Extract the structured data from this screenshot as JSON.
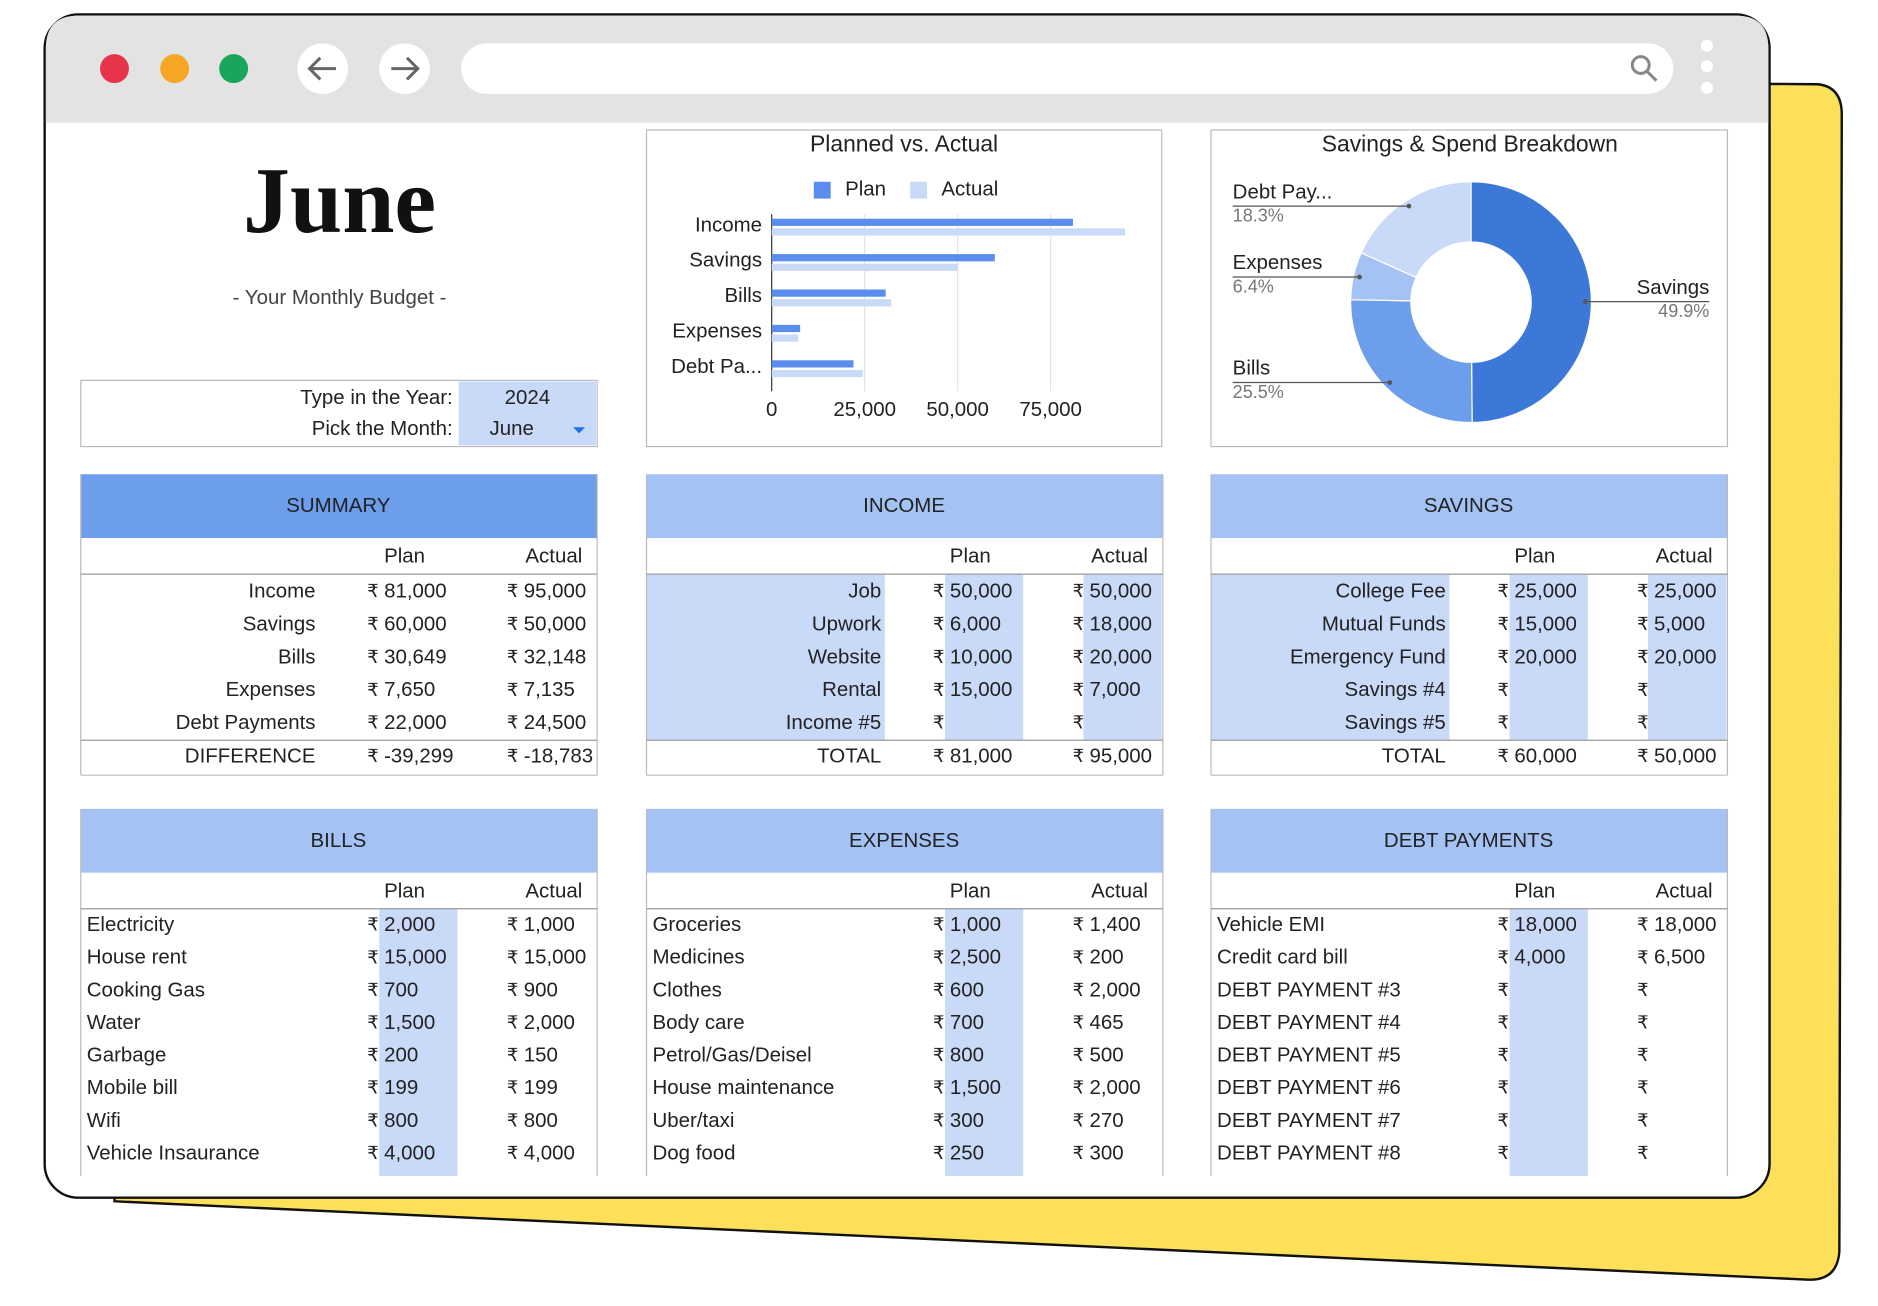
{
  "header": {
    "month": "June",
    "subtitle": "- Your Monthly Budget -"
  },
  "controls": {
    "year_label": "Type in the Year:",
    "year": "2024",
    "month_label": "Pick the Month:",
    "month": "June"
  },
  "currency": "₹",
  "tables": [
    {
      "title": "SUMMARY",
      "columns": [
        "Plan",
        "Actual"
      ],
      "rows": [
        [
          "Income",
          "81,000",
          "95,000"
        ],
        [
          "Savings",
          "60,000",
          "50,000"
        ],
        [
          "Bills",
          "30,649",
          "32,148"
        ],
        [
          "Expenses",
          "7,650",
          "7,135"
        ],
        [
          "Debt Payments",
          "22,000",
          "24,500"
        ]
      ],
      "total": [
        "DIFFERENCE",
        "-39,299",
        "-18,783"
      ]
    },
    {
      "title": "INCOME",
      "columns": [
        "Plan",
        "Actual"
      ],
      "rows": [
        [
          "Job",
          "50,000",
          "50,000"
        ],
        [
          "Upwork",
          "6,000",
          "18,000"
        ],
        [
          "Website",
          "10,000",
          "20,000"
        ],
        [
          "Rental",
          "15,000",
          "7,000"
        ],
        [
          "Income #5",
          null,
          null
        ]
      ],
      "total": [
        "TOTAL",
        "81,000",
        "95,000"
      ]
    },
    {
      "title": "SAVINGS",
      "columns": [
        "Plan",
        "Actual"
      ],
      "rows": [
        [
          "College Fee",
          "25,000",
          "25,000"
        ],
        [
          "Mutual Funds",
          "15,000",
          "5,000"
        ],
        [
          "Emergency Fund",
          "20,000",
          "20,000"
        ],
        [
          "Savings #4",
          null,
          null
        ],
        [
          "Savings #5",
          null,
          null
        ]
      ],
      "total": [
        "TOTAL",
        "60,000",
        "50,000"
      ]
    },
    {
      "title": "BILLS",
      "columns": [
        "Plan",
        "Actual"
      ],
      "rows": [
        [
          "Electricity",
          "2,000",
          "1,000"
        ],
        [
          "House rent",
          "15,000",
          "15,000"
        ],
        [
          "Cooking Gas",
          "700",
          "900"
        ],
        [
          "Water",
          "1,500",
          "2,000"
        ],
        [
          "Garbage",
          "200",
          "150"
        ],
        [
          "Mobile bill",
          "199",
          "199"
        ],
        [
          "Wifi",
          "800",
          "800"
        ],
        [
          "Vehicle Insaurance",
          "4,000",
          "4,000"
        ]
      ]
    },
    {
      "title": "EXPENSES",
      "columns": [
        "Plan",
        "Actual"
      ],
      "rows": [
        [
          "Groceries",
          "1,000",
          "1,400"
        ],
        [
          "Medicines",
          "2,500",
          "200"
        ],
        [
          "Clothes",
          "600",
          "2,000"
        ],
        [
          "Body care",
          "700",
          "465"
        ],
        [
          "Petrol/Gas/Deisel",
          "800",
          "500"
        ],
        [
          "House maintenance",
          "1,500",
          "2,000"
        ],
        [
          "Uber/taxi",
          "300",
          "270"
        ],
        [
          "Dog food",
          "250",
          "300"
        ]
      ]
    },
    {
      "title": "DEBT PAYMENTS",
      "columns": [
        "Plan",
        "Actual"
      ],
      "rows": [
        [
          "Vehicle EMI",
          "18,000",
          "18,000"
        ],
        [
          "Credit card bill",
          "4,000",
          "6,500"
        ],
        [
          "DEBT PAYMENT #3",
          null,
          null
        ],
        [
          "DEBT PAYMENT #4",
          null,
          null
        ],
        [
          "DEBT PAYMENT #5",
          null,
          null
        ],
        [
          "DEBT PAYMENT #6",
          null,
          null
        ],
        [
          "DEBT PAYMENT #7",
          null,
          null
        ],
        [
          "DEBT PAYMENT #8",
          null,
          null
        ]
      ]
    }
  ],
  "chart_data": [
    {
      "type": "hbar",
      "title": "Planned vs. Actual",
      "categories": [
        "Income",
        "Savings",
        "Bills",
        "Expenses",
        "Debt Pa..."
      ],
      "series": [
        {
          "name": "Plan",
          "color": "#5b8def",
          "values": [
            81000,
            60000,
            30649,
            7650,
            22000
          ]
        },
        {
          "name": "Actual",
          "color": "#c9daf8",
          "values": [
            95000,
            50000,
            32148,
            7135,
            24500
          ]
        }
      ],
      "xlim": [
        0,
        100000
      ],
      "xticks": [
        0,
        {
          "value": 25000,
          "label": "25,000"
        },
        {
          "value": 50000,
          "label": "50,000"
        },
        {
          "value": 75000,
          "label": "75,000"
        }
      ],
      "grid": true,
      "legend": "top"
    },
    {
      "type": "donut",
      "title": "Savings & Spend Breakdown",
      "categories": [
        "Savings",
        "Bills",
        "Expenses",
        "Debt Pay..."
      ],
      "values": [
        49.9,
        25.5,
        6.4,
        18.3
      ],
      "value_labels": [
        "49.9%",
        "25.5%",
        "6.4%",
        "18.3%"
      ],
      "colors": [
        "#3c78d8",
        "#6d9eeb",
        "#a4c2f4",
        "#c9daf8"
      ]
    }
  ]
}
